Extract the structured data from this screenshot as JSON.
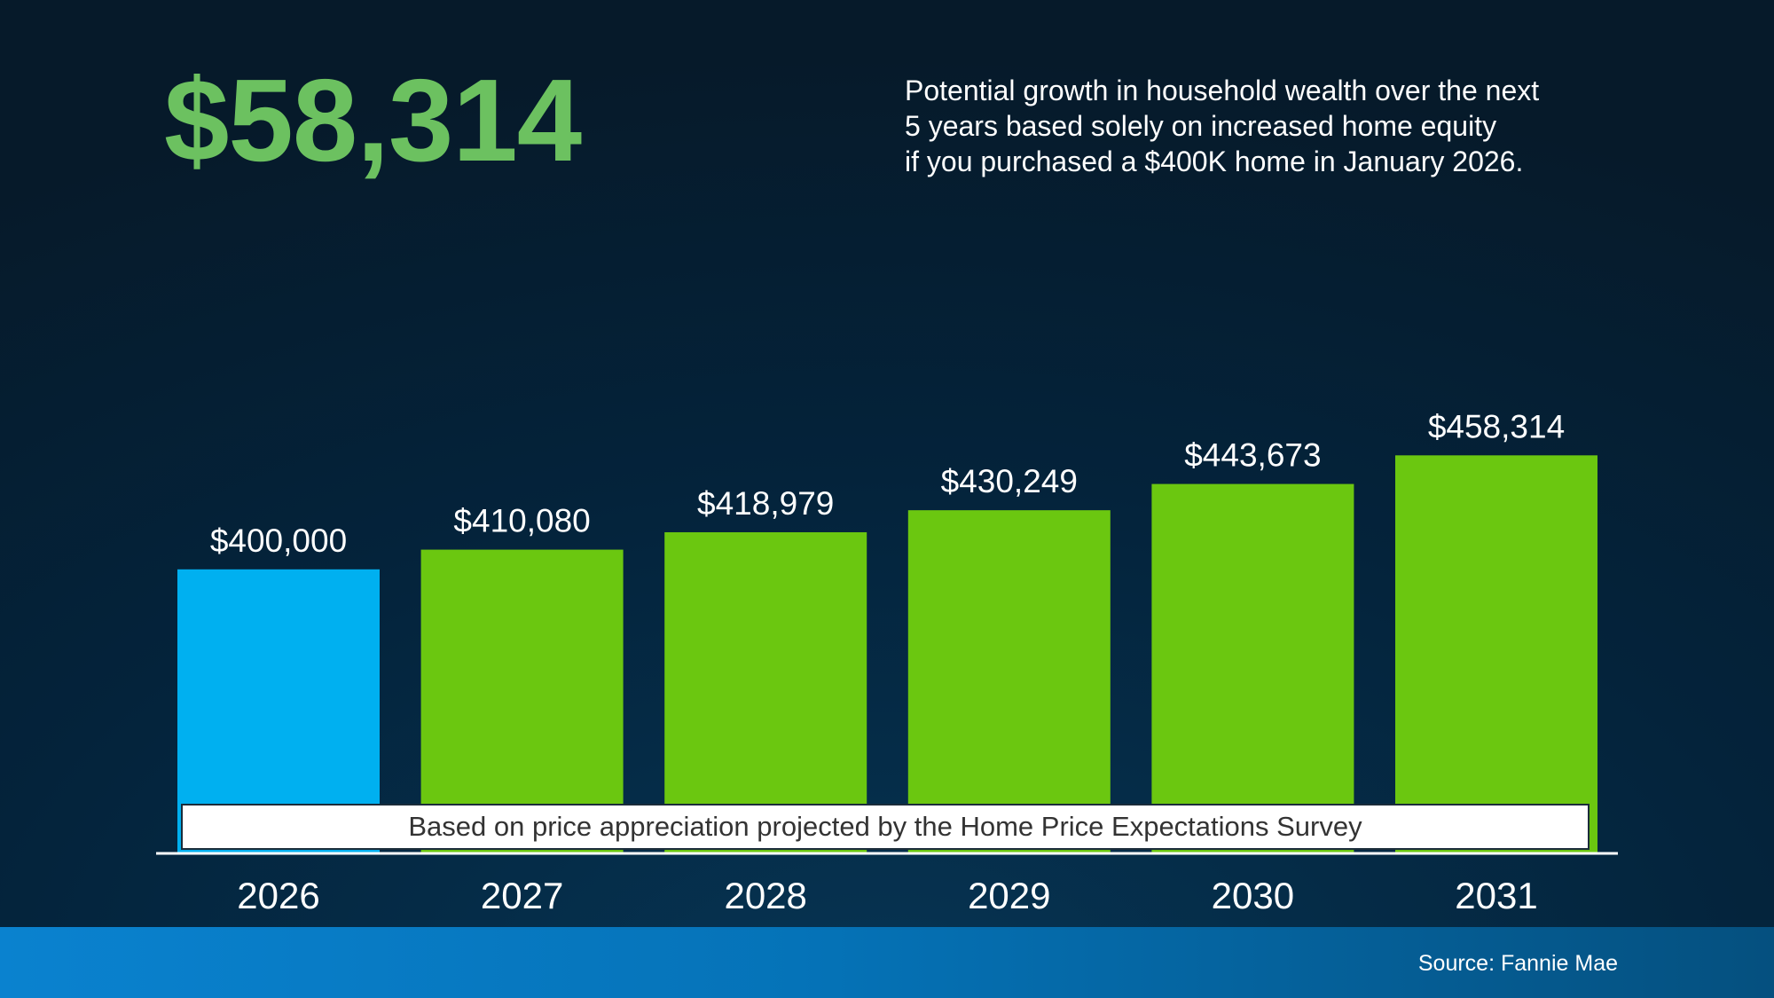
{
  "headline": "$58,314",
  "description": {
    "line1": "Potential growth in household wealth over the next",
    "line2": "5 years based solely on increased home equity",
    "line3": "if you purchased a $400K home in January 2026."
  },
  "footnote": "Based on price appreciation projected by the Home Price Expectations Survey",
  "source": "Source: Fannie Mae",
  "colors": {
    "headline": "#6cc160",
    "baseline_bar": "#00b0f0",
    "projected_bar": "#6bc710",
    "source_band": "#0a82cf"
  },
  "chart_data": {
    "type": "bar",
    "categories": [
      "2026",
      "2027",
      "2028",
      "2029",
      "2030",
      "2031"
    ],
    "values": [
      400000,
      410080,
      418979,
      430249,
      443673,
      458314
    ],
    "value_labels": [
      "$400,000",
      "$410,080",
      "$418,979",
      "$430,249",
      "$443,673",
      "$458,314"
    ],
    "title": "",
    "xlabel": "",
    "ylabel": "",
    "grid": false,
    "legend": "none"
  }
}
